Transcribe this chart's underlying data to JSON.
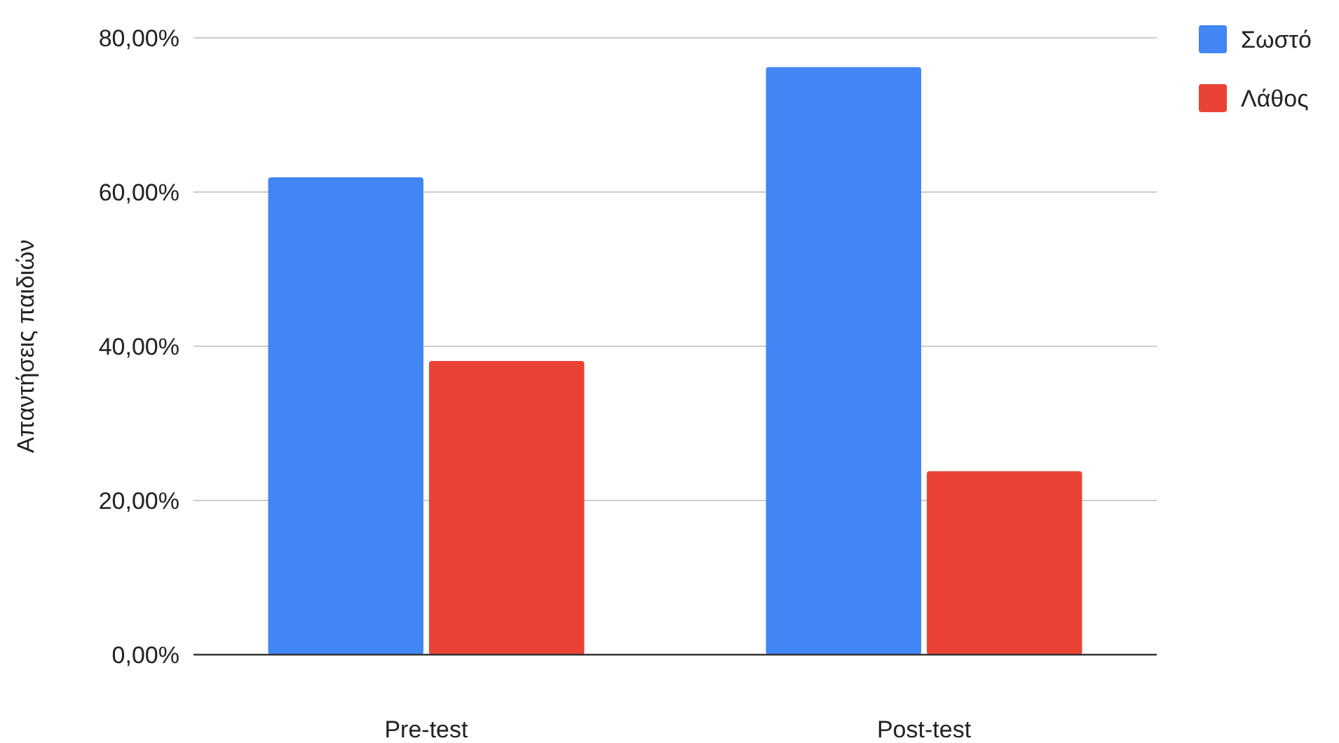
{
  "chart_data": {
    "type": "bar",
    "ylabel": "Απαντήσεις παιδιών",
    "categories": [
      "Pre-test",
      "Post-test"
    ],
    "series": [
      {
        "name": "Σωστό",
        "color": "#4285f4",
        "values": [
          61.9,
          76.2
        ]
      },
      {
        "name": "Λάθος",
        "color": "#ea4335",
        "values": [
          38.1,
          23.8
        ]
      }
    ],
    "ylim": [
      0,
      80
    ],
    "yticks": [
      {
        "value": 0,
        "label": "0,00%"
      },
      {
        "value": 20,
        "label": "20,00%"
      },
      {
        "value": 40,
        "label": "40,00%"
      },
      {
        "value": 60,
        "label": "60,00%"
      },
      {
        "value": 80,
        "label": "80,00%"
      }
    ],
    "grid": "y",
    "legend": "top right"
  }
}
